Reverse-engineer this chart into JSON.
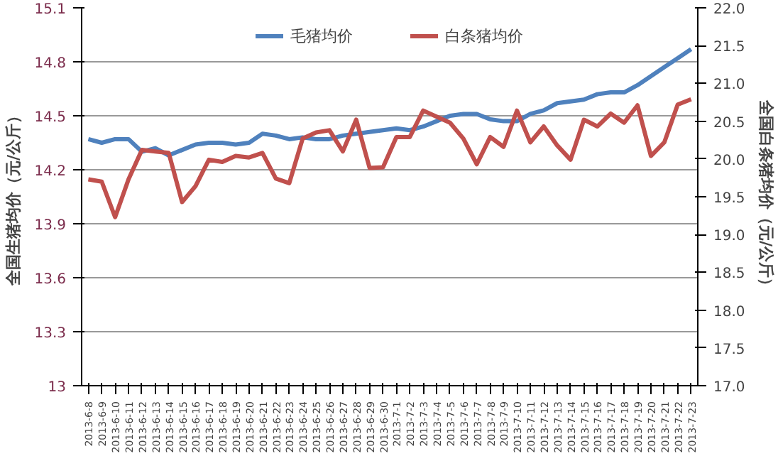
{
  "chart_data": {
    "type": "line",
    "ylabel": "全国生猪均价（元/公斤）",
    "y2label": "全国白条猪均价（元/公斤）",
    "categories": [
      "2013-6-8",
      "2013-6-9",
      "2013-6-10",
      "2013-6-11",
      "2013-6-12",
      "2013-6-13",
      "2013-6-14",
      "2013-6-15",
      "2013-6-16",
      "2013-6-17",
      "2013-6-18",
      "2013-6-19",
      "2013-6-20",
      "2013-6-21",
      "2013-6-22",
      "2013-6-23",
      "2013-6-24",
      "2013-6-25",
      "2013-6-26",
      "2013-6-27",
      "2013-6-28",
      "2013-6-29",
      "2013-6-30",
      "2013-7-1",
      "2013-7-2",
      "2013-7-3",
      "2013-7-4",
      "2013-7-5",
      "2013-7-6",
      "2013-7-7",
      "2013-7-8",
      "2013-7-9",
      "2013-7-10",
      "2013-7-11",
      "2013-7-12",
      "2013-7-13",
      "2013-7-14",
      "2013-7-15",
      "2013-7-16",
      "2013-7-17",
      "2013-7-18",
      "2013-7-19",
      "2013-7-20",
      "2013-7-21",
      "2013-7-22",
      "2013-7-23"
    ],
    "series": [
      {
        "name": "毛猪均价",
        "color": "#4f81bd",
        "values": [
          14.37,
          14.35,
          14.37,
          14.37,
          14.3,
          14.32,
          14.28,
          14.31,
          14.34,
          14.35,
          14.35,
          14.34,
          14.35,
          14.4,
          14.39,
          14.37,
          14.38,
          14.37,
          14.37,
          14.39,
          14.4,
          14.41,
          14.42,
          14.43,
          14.42,
          14.44,
          14.47,
          14.5,
          14.51,
          14.51,
          14.48,
          14.47,
          14.47,
          14.51,
          14.53,
          14.57,
          14.58,
          14.59,
          14.62,
          14.63,
          14.63,
          14.67,
          14.72,
          14.77,
          14.82,
          14.87
        ]
      },
      {
        "name": "白条猪均价",
        "color": "#c0504d",
        "axis": "y2",
        "values": [
          19.73,
          19.7,
          19.23,
          19.73,
          20.12,
          20.1,
          20.08,
          19.43,
          19.64,
          19.99,
          19.96,
          20.04,
          20.02,
          20.08,
          19.74,
          19.68,
          20.27,
          20.35,
          20.38,
          20.1,
          20.52,
          19.88,
          19.89,
          20.29,
          20.29,
          20.64,
          20.56,
          20.48,
          20.27,
          19.93,
          20.29,
          20.16,
          20.64,
          20.22,
          20.43,
          20.18,
          19.99,
          20.52,
          20.43,
          20.6,
          20.48,
          20.71,
          20.04,
          20.22,
          20.72,
          20.79
        ]
      }
    ],
    "ylim": [
      13,
      15.1
    ],
    "yticks": [
      13,
      13.3,
      13.6,
      13.9,
      14.2,
      14.5,
      14.8,
      15.1
    ],
    "y2lim": [
      17,
      22
    ],
    "y2ticks": [
      {
        "value": 17,
        "label": "17.0"
      },
      {
        "value": 17.5,
        "label": "17.5"
      },
      {
        "value": 18,
        "label": "18.0"
      },
      {
        "value": 18.5,
        "label": "18.5"
      },
      {
        "value": 19,
        "label": "19.0"
      },
      {
        "value": 19.5,
        "label": "19.5"
      },
      {
        "value": 20,
        "label": "20.0"
      },
      {
        "value": 20.5,
        "label": "20.5"
      },
      {
        "value": 21,
        "label": "21.0"
      },
      {
        "value": 21.5,
        "label": "21.5"
      },
      {
        "value": 22,
        "label": "22.0"
      }
    ],
    "grid": "y",
    "legend": "top",
    "marker": "none",
    "line_style": "solid"
  }
}
